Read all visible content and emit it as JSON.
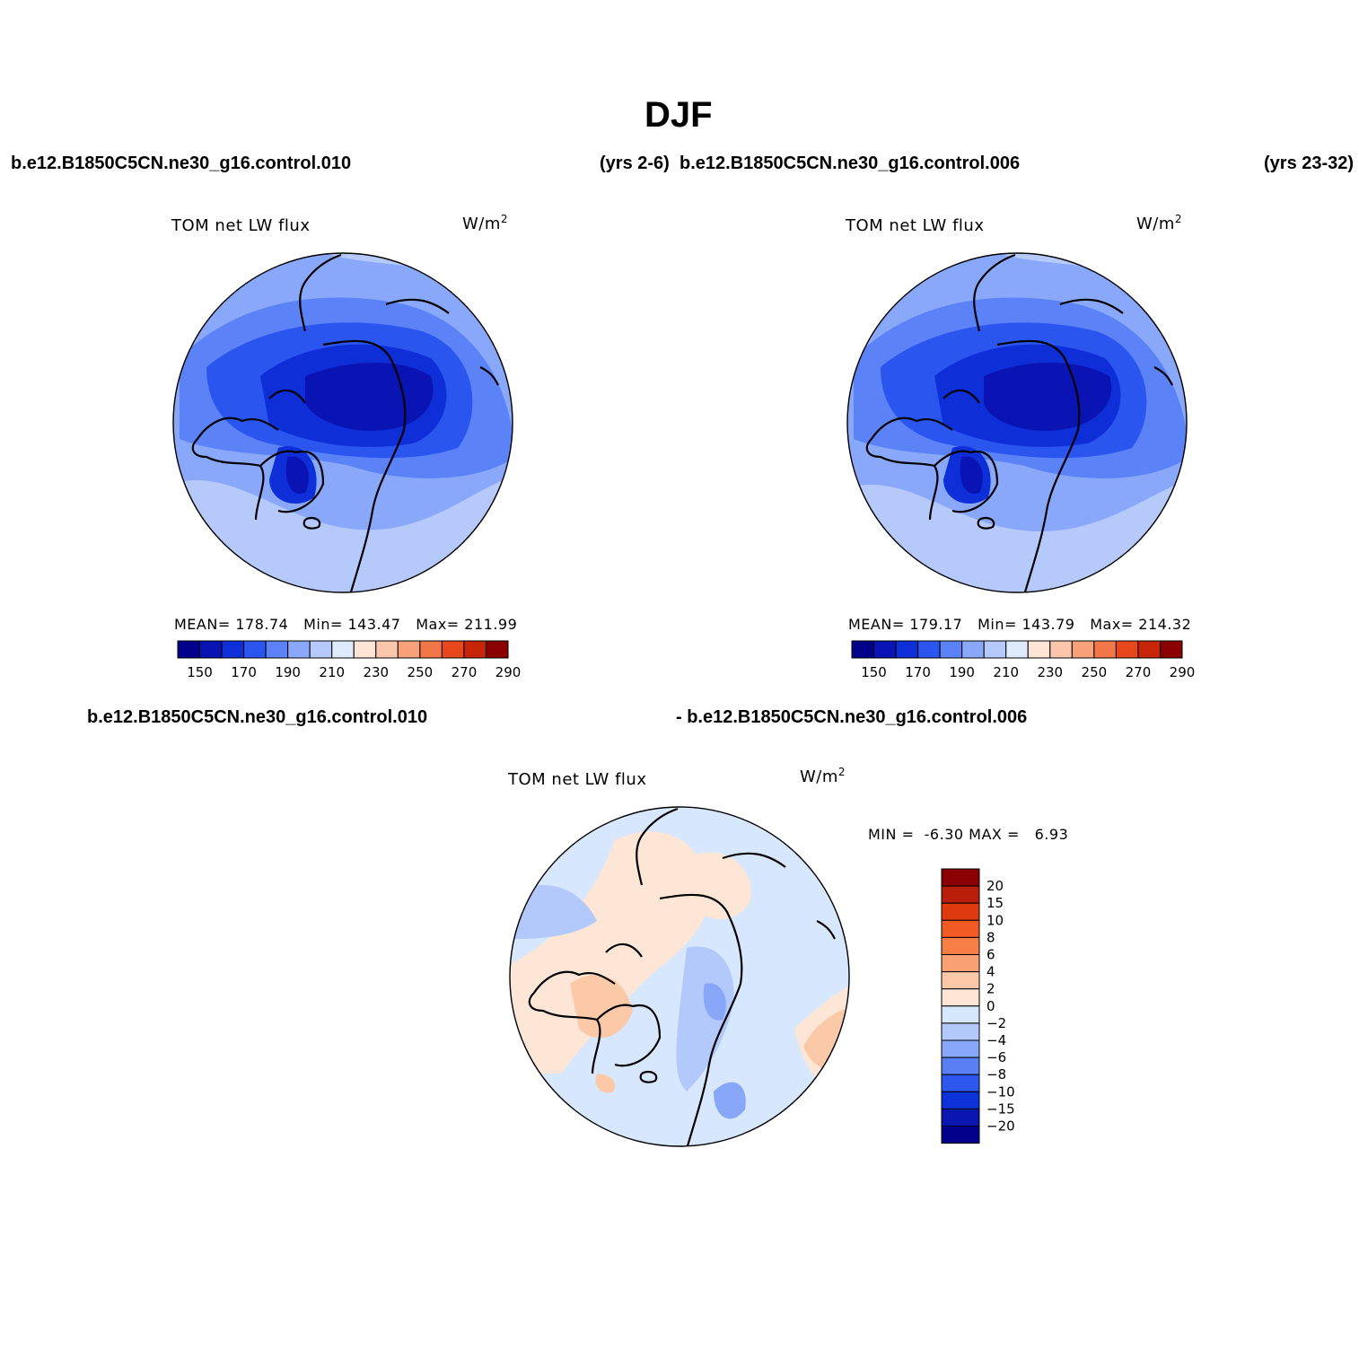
{
  "figure": {
    "season_title": "DJF",
    "case_top_left": "b.e12.B1850C5CN.ne30_g16.control.010",
    "yrs_top_left": "(yrs 2-6)",
    "case_top_right": "b.e12.B1850C5CN.ne30_g16.control.006",
    "yrs_top_right": "(yrs 23-32)",
    "diff_case_a": "b.e12.B1850C5CN.ne30_g16.control.010",
    "diff_case_b": "- b.e12.B1850C5CN.ne30_g16.control.006"
  },
  "panels": [
    {
      "id": "case-010",
      "variable": "TOM net LW flux",
      "units": "W/m",
      "units_exp": "2",
      "stats": {
        "mean_label": "MEAN=",
        "mean": "178.74",
        "min_label": "Min=",
        "min": "143.47",
        "max_label": "Max=",
        "max": "211.99"
      }
    },
    {
      "id": "case-006",
      "variable": "TOM net LW flux",
      "units": "W/m",
      "units_exp": "2",
      "stats": {
        "mean_label": "MEAN=",
        "mean": "179.17",
        "min_label": "Min=",
        "min": "143.79",
        "max_label": "Max=",
        "max": "214.32"
      }
    },
    {
      "id": "difference",
      "variable": "TOM net LW flux",
      "units": "W/m",
      "units_exp": "2",
      "stats": {
        "min_label": "MIN =",
        "min": "-6.30",
        "max_label": "MAX =",
        "max": "6.93"
      }
    }
  ],
  "colorbar_abs": {
    "colors": [
      "#00008b",
      "#0a14b4",
      "#0e2fd8",
      "#2a55ef",
      "#5b82f6",
      "#8aa8f9",
      "#b6c9fb",
      "#deebfd",
      "#fde4d4",
      "#fbc6ab",
      "#f7a07a",
      "#f27647",
      "#e8471c",
      "#c72508",
      "#8b0000"
    ],
    "tick_labels": [
      "150",
      "170",
      "190",
      "210",
      "230",
      "250",
      "270",
      "290"
    ]
  },
  "colorbar_diff": {
    "colors": [
      "#8b0000",
      "#b81e0a",
      "#dd3a0e",
      "#f25a23",
      "#f77e45",
      "#f9a173",
      "#fbc8a8",
      "#fde6d6",
      "#d7e7fd",
      "#b3c8fb",
      "#89a7f9",
      "#5a80f6",
      "#2d57ee",
      "#0d32da",
      "#0a16b0",
      "#00008b"
    ],
    "tick_labels": [
      "20",
      "15",
      "10",
      "8",
      "6",
      "4",
      "2",
      "0",
      "−2",
      "−4",
      "−6",
      "−8",
      "−10",
      "−15",
      "−20"
    ]
  }
}
